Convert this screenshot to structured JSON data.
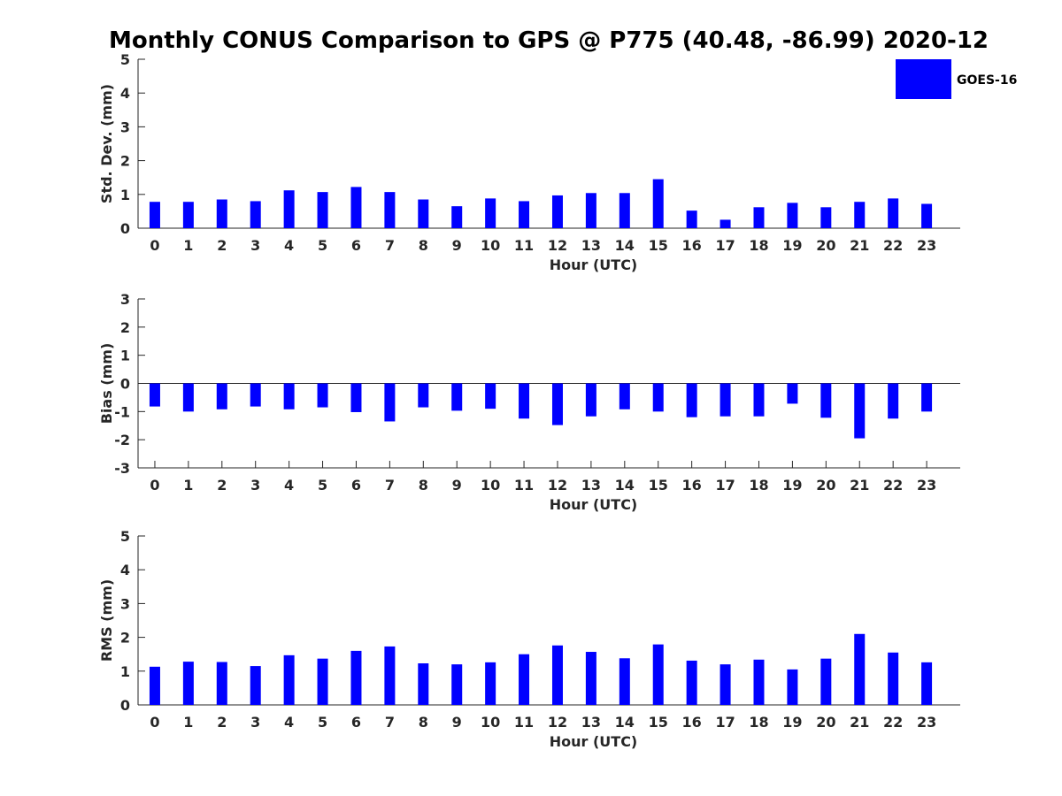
{
  "title": "Monthly CONUS Comparison to GPS @ P775 (40.48, -86.99) 2020-12",
  "colors": {
    "bar": "#0000ff",
    "axis": "#262626",
    "text": "#000000"
  },
  "legend": {
    "label": "GOES-16",
    "placement": "top-right"
  },
  "chart_data": [
    {
      "type": "bar",
      "ylabel": "Std. Dev. (mm)",
      "xlabel": "Hour (UTC)",
      "ylim": [
        0,
        5
      ],
      "yticks": [
        0,
        1,
        2,
        3,
        4,
        5
      ],
      "categories": [
        "0",
        "1",
        "2",
        "3",
        "4",
        "5",
        "6",
        "7",
        "8",
        "9",
        "10",
        "11",
        "12",
        "13",
        "14",
        "15",
        "16",
        "17",
        "18",
        "19",
        "20",
        "21",
        "22",
        "23"
      ],
      "series": [
        {
          "name": "GOES-16",
          "values": [
            0.78,
            0.78,
            0.85,
            0.8,
            1.12,
            1.07,
            1.22,
            1.07,
            0.85,
            0.65,
            0.88,
            0.8,
            0.97,
            1.04,
            1.04,
            1.45,
            0.52,
            0.25,
            0.62,
            0.75,
            0.62,
            0.78,
            0.88,
            0.72
          ]
        }
      ]
    },
    {
      "type": "bar",
      "ylabel": "Bias (mm)",
      "xlabel": "Hour (UTC)",
      "ylim": [
        -3,
        3
      ],
      "yticks": [
        -3,
        -2,
        -1,
        0,
        1,
        2,
        3
      ],
      "zero_line": true,
      "categories": [
        "0",
        "1",
        "2",
        "3",
        "4",
        "5",
        "6",
        "7",
        "8",
        "9",
        "10",
        "11",
        "12",
        "13",
        "14",
        "15",
        "16",
        "17",
        "18",
        "19",
        "20",
        "21",
        "22",
        "23"
      ],
      "series": [
        {
          "name": "GOES-16",
          "values": [
            -0.82,
            -1.0,
            -0.92,
            -0.82,
            -0.92,
            -0.85,
            -1.02,
            -1.35,
            -0.85,
            -0.97,
            -0.9,
            -1.25,
            -1.48,
            -1.17,
            -0.92,
            -1.0,
            -1.2,
            -1.17,
            -1.17,
            -0.72,
            -1.22,
            -1.95,
            -1.25,
            -1.0
          ]
        }
      ]
    },
    {
      "type": "bar",
      "ylabel": "RMS (mm)",
      "xlabel": "Hour (UTC)",
      "ylim": [
        0,
        5
      ],
      "yticks": [
        0,
        1,
        2,
        3,
        4,
        5
      ],
      "categories": [
        "0",
        "1",
        "2",
        "3",
        "4",
        "5",
        "6",
        "7",
        "8",
        "9",
        "10",
        "11",
        "12",
        "13",
        "14",
        "15",
        "16",
        "17",
        "18",
        "19",
        "20",
        "21",
        "22",
        "23"
      ],
      "series": [
        {
          "name": "GOES-16",
          "values": [
            1.13,
            1.28,
            1.27,
            1.15,
            1.47,
            1.37,
            1.6,
            1.73,
            1.23,
            1.2,
            1.26,
            1.5,
            1.76,
            1.57,
            1.38,
            1.79,
            1.31,
            1.2,
            1.34,
            1.05,
            1.37,
            2.1,
            1.55,
            1.26
          ]
        }
      ]
    }
  ]
}
